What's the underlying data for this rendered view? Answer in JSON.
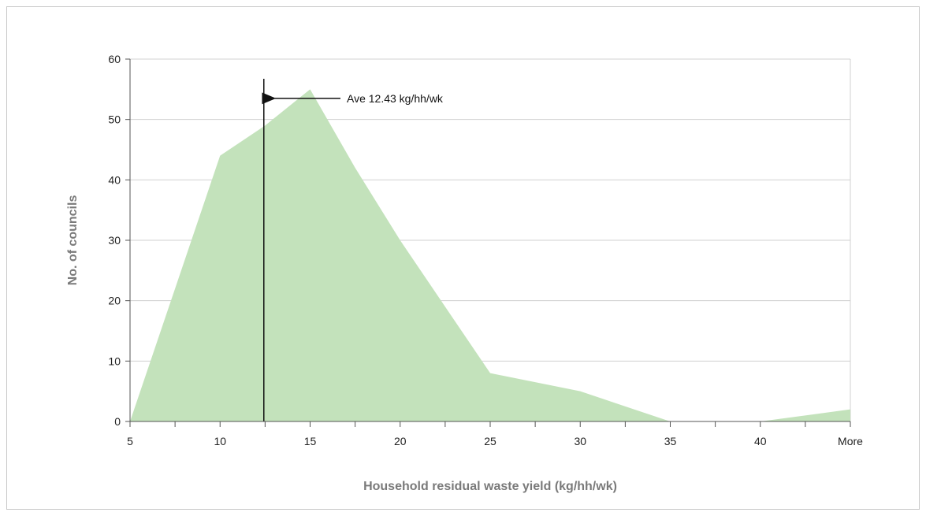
{
  "chart_data": {
    "type": "area",
    "title": "",
    "xlabel": "Household residual waste yield (kg/hh/wk)",
    "ylabel": "No. of councils",
    "categories": [
      "5",
      "",
      "10",
      "",
      "15",
      "",
      "20",
      "",
      "25",
      "",
      "30",
      "",
      "35",
      "",
      "40",
      "",
      "More"
    ],
    "tick_labels": [
      "5",
      "10",
      "15",
      "20",
      "25",
      "30",
      "35",
      "40",
      "More"
    ],
    "series": [
      {
        "values": [
          0,
          22,
          44,
          49,
          55,
          42,
          30,
          19,
          8,
          6.5,
          5,
          2.5,
          0,
          0,
          0,
          1,
          2
        ]
      }
    ],
    "ylim": [
      0,
      60
    ],
    "yticks": [
      0,
      10,
      20,
      30,
      40,
      50,
      60
    ],
    "grid": true,
    "colors": {
      "fill": "#c3e2bb",
      "grid": "#d0d0d0",
      "axis": "#555555",
      "line": "#111111"
    },
    "average_line": {
      "x": 12.43,
      "label": "Ave 12.43 kg/hh/wk"
    }
  }
}
